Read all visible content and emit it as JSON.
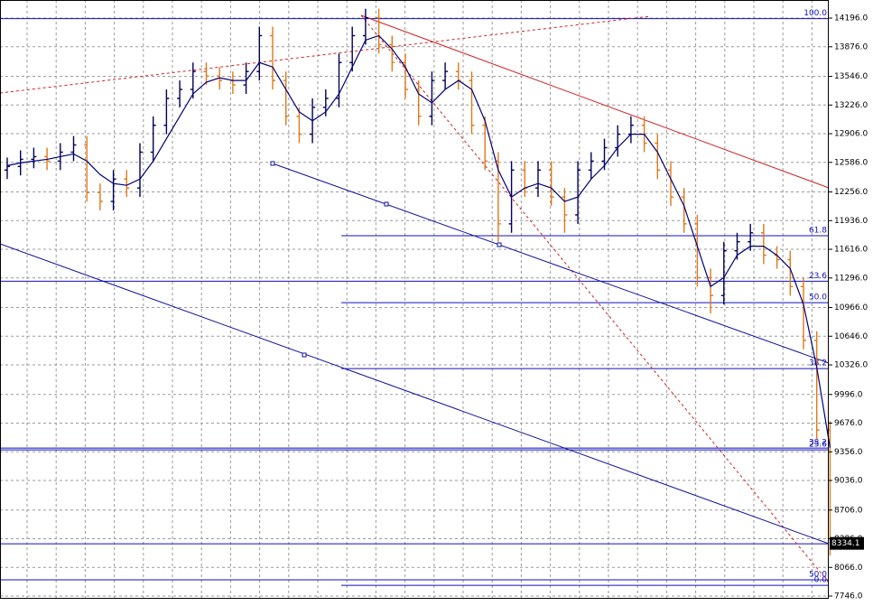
{
  "chart_data": {
    "type": "ohlc",
    "up_color": "#00005a",
    "down_color": "#e07818",
    "ma_color": "#00007a",
    "fibo_color": "#1010c0",
    "grid": true,
    "ylim": [
      7726,
      14398
    ],
    "yticks": [
      {
        "value": 14196,
        "label": "14196.0"
      },
      {
        "value": 13876,
        "label": "13876.0"
      },
      {
        "value": 13546,
        "label": "13546.0"
      },
      {
        "value": 13226,
        "label": "13226.0"
      },
      {
        "value": 12906,
        "label": "12906.0"
      },
      {
        "value": 12586,
        "label": "12586.0"
      },
      {
        "value": 12256,
        "label": "12256.0"
      },
      {
        "value": 11936,
        "label": "11936.0"
      },
      {
        "value": 11616,
        "label": "11616.0"
      },
      {
        "value": 11296,
        "label": "11296.0"
      },
      {
        "value": 10966,
        "label": "10966.0"
      },
      {
        "value": 10646,
        "label": "10646.0"
      },
      {
        "value": 10326,
        "label": "10326.0"
      },
      {
        "value": 9996,
        "label": "9996.0"
      },
      {
        "value": 9676,
        "label": "9676.0"
      },
      {
        "value": 9356,
        "label": "9356.0"
      },
      {
        "value": 9036,
        "label": "9036.0"
      },
      {
        "value": 8706,
        "label": "8706.0"
      },
      {
        "value": 8386,
        "label": "8386.0"
      },
      {
        "value": 8066,
        "label": "8066.0"
      },
      {
        "value": 7746,
        "label": "7746.0"
      }
    ],
    "open": [
      12500,
      12540,
      12620,
      12650,
      12600,
      12700,
      12780,
      12250,
      12150,
      12400,
      12300,
      12700,
      13000,
      13300,
      13400,
      13600,
      13550,
      13500,
      13450,
      13600,
      14000,
      13500,
      13100,
      12900,
      13200,
      13300,
      13700,
      14000,
      14200,
      13900,
      13700,
      13400,
      13100,
      13500,
      13600,
      13500,
      13000,
      12600,
      11900,
      12500,
      12300,
      12500,
      12200,
      12000,
      12500,
      12600,
      12750,
      12900,
      13000,
      12800,
      12500,
      12200,
      11900,
      11300,
      11100,
      11600,
      11700,
      11800,
      11550,
      11500,
      11200,
      10600,
      9600
    ],
    "high": [
      12640,
      12720,
      12750,
      12750,
      12800,
      12880,
      12880,
      12350,
      12500,
      12500,
      12800,
      13100,
      13400,
      13500,
      13700,
      13700,
      13650,
      13600,
      13700,
      14100,
      14100,
      13600,
      13200,
      13300,
      13400,
      13800,
      14100,
      14300,
      14300,
      14000,
      13800,
      13500,
      13600,
      13700,
      13700,
      13600,
      13100,
      12700,
      12600,
      12600,
      12600,
      12600,
      12300,
      12600,
      12700,
      12850,
      13000,
      13100,
      13100,
      12900,
      12600,
      12300,
      12000,
      11400,
      11700,
      11800,
      11900,
      11900,
      11650,
      11600,
      11300,
      10700,
      9700
    ],
    "low": [
      12400,
      12440,
      12520,
      12500,
      12500,
      12600,
      12150,
      12050,
      12050,
      12200,
      12200,
      12600,
      12900,
      13200,
      13300,
      13450,
      13400,
      13350,
      13350,
      13500,
      13400,
      13000,
      12800,
      12800,
      13100,
      13200,
      13600,
      13900,
      13800,
      13600,
      13300,
      13000,
      13000,
      13400,
      13400,
      12900,
      12500,
      11700,
      11800,
      12200,
      12200,
      12100,
      11800,
      11900,
      12400,
      12500,
      12650,
      12800,
      12700,
      12400,
      12100,
      11800,
      11200,
      10900,
      11000,
      11500,
      11600,
      11450,
      11400,
      11100,
      10500,
      9500,
      8200
    ],
    "close": [
      12540,
      12620,
      12650,
      12600,
      12700,
      12780,
      12250,
      12150,
      12400,
      12300,
      12700,
      13000,
      13300,
      13400,
      13600,
      13550,
      13500,
      13450,
      13600,
      14000,
      13500,
      13100,
      12900,
      13200,
      13300,
      13700,
      14000,
      14200,
      13900,
      13700,
      13400,
      13100,
      13500,
      13600,
      13500,
      13000,
      12600,
      11900,
      12500,
      12300,
      12500,
      12200,
      12000,
      12500,
      12600,
      12750,
      12900,
      13000,
      12800,
      12500,
      12200,
      11900,
      11300,
      11100,
      11600,
      11700,
      11800,
      11550,
      11500,
      11200,
      10600,
      9600,
      8334.1
    ],
    "ma": [
      12550,
      12580,
      12600,
      12620,
      12650,
      12680,
      12600,
      12450,
      12350,
      12330,
      12400,
      12600,
      12850,
      13100,
      13350,
      13480,
      13530,
      13500,
      13500,
      13700,
      13650,
      13400,
      13150,
      13050,
      13150,
      13350,
      13650,
      13950,
      14000,
      13850,
      13650,
      13350,
      13250,
      13400,
      13500,
      13400,
      13050,
      12500,
      12200,
      12300,
      12350,
      12300,
      12150,
      12200,
      12400,
      12550,
      12750,
      12900,
      12900,
      12700,
      12400,
      12100,
      11650,
      11200,
      11300,
      11550,
      11650,
      11650,
      11550,
      11400,
      11000,
      10300,
      9400
    ],
    "last_price": 8334.1,
    "fibo_wide": [
      {
        "value": 14190,
        "label": "100.0"
      },
      {
        "value": 11260,
        "label": "23.6"
      },
      {
        "value": 9398,
        "label": "38.2"
      },
      {
        "value": 9378,
        "label": "23.6"
      },
      {
        "value": 8330
      },
      {
        "value": 7927,
        "label": "50.0"
      }
    ],
    "fibo_range": [
      {
        "value": 11767,
        "label": "61.8"
      },
      {
        "value": 11021,
        "label": "50.0"
      },
      {
        "value": 10285,
        "label": "38.2"
      },
      {
        "value": 7866,
        "label": "0.0"
      }
    ]
  }
}
